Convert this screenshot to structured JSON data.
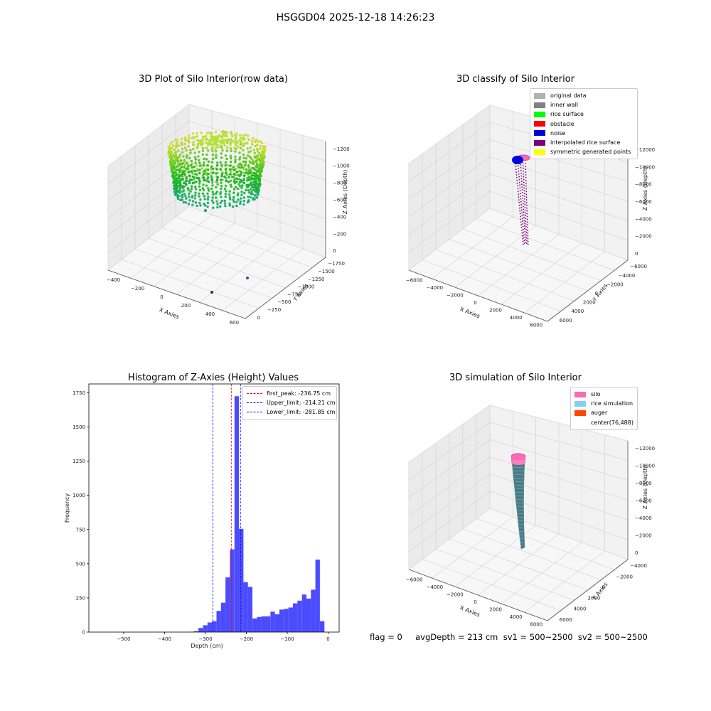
{
  "suptitle": "HSGGD04 2025-12-18 14:26:23",
  "panels": {
    "raw": {
      "title": "3D Plot of Silo Interior(row data)",
      "xlabel": "X Axies",
      "ylabel": "Y Axies",
      "zlabel": "Z Axies (Depth)",
      "xticks": [
        "−400",
        "−200",
        "0",
        "200",
        "400",
        "600"
      ],
      "yticks": [
        "0",
        "−250",
        "−500",
        "−750",
        "−1000",
        "−1250",
        "−1500",
        "−1750"
      ],
      "zticks": [
        "0",
        "−200",
        "−400",
        "−600",
        "−800",
        "−1000",
        "−1200"
      ]
    },
    "classify": {
      "title": "3D classify of Silo Interior",
      "xlabel": "X Axies",
      "ylabel": "Y Axies",
      "zlabel": "Z Axies (Depth)",
      "xticks": [
        "−6000",
        "−4000",
        "−2000",
        "0",
        "2000",
        "4000",
        "6000"
      ],
      "yticks": [
        "6000",
        "4000",
        "2000",
        "0",
        "−2000",
        "−4000",
        "−6000"
      ],
      "zticks": [
        "0",
        "−2000",
        "−4000",
        "−6000",
        "−8000",
        "−10000",
        "−12000"
      ],
      "legend": [
        {
          "label": "original data",
          "color": "#b0b0b0"
        },
        {
          "label": "inner wall",
          "color": "#808080"
        },
        {
          "label": "rice surface",
          "color": "#00ff00"
        },
        {
          "label": "obstacle",
          "color": "#ff0000"
        },
        {
          "label": "noise",
          "color": "#0000dd"
        },
        {
          "label": "interpolated rice surface",
          "color": "#800080"
        },
        {
          "label": "symmetric generated points",
          "color": "#ffff00"
        }
      ]
    },
    "simulation": {
      "title": "3D simulation of Silo Interior",
      "xlabel": "X Axies",
      "ylabel": "Y Axies",
      "zlabel": "Z Axies (Depth)",
      "xticks": [
        "−6000",
        "−4000",
        "−2000",
        "0",
        "2000",
        "4000",
        "6000"
      ],
      "yticks": [
        "6000",
        "4000",
        "2000",
        "0",
        "−2000",
        "−4000"
      ],
      "zticks": [
        "0",
        "−2000",
        "−4000",
        "−6000",
        "−8000",
        "−10000",
        "−12000"
      ],
      "legend": [
        {
          "label": "silo",
          "color": "#ff69b4"
        },
        {
          "label": "rice simulation",
          "color": "#87ceeb"
        },
        {
          "label": "auger",
          "color": "#ff4500"
        },
        {
          "label": "center(76,488)",
          "color": "#ffffff"
        }
      ]
    }
  },
  "chart_data": {
    "type": "bar",
    "title": "Histogram of Z-Axies (Height) Values",
    "xlabel": "Depth (cm)",
    "ylabel": "Frequency",
    "xlim": [
      -585,
      27
    ],
    "ylim": [
      0,
      1815
    ],
    "xticks": [
      -500,
      -400,
      -300,
      -200,
      -100,
      0
    ],
    "yticks": [
      0,
      250,
      500,
      750,
      1000,
      1250,
      1500,
      1750
    ],
    "bar_color": "#0000ff",
    "bin_width": 11,
    "bins": [
      {
        "x0": -339,
        "count": 2
      },
      {
        "x0": -328,
        "count": 6
      },
      {
        "x0": -317,
        "count": 30
      },
      {
        "x0": -306,
        "count": 50
      },
      {
        "x0": -295,
        "count": 70
      },
      {
        "x0": -284,
        "count": 80
      },
      {
        "x0": -273,
        "count": 155
      },
      {
        "x0": -262,
        "count": 215
      },
      {
        "x0": -251,
        "count": 400
      },
      {
        "x0": -240,
        "count": 605
      },
      {
        "x0": -229,
        "count": 1725
      },
      {
        "x0": -218,
        "count": 755
      },
      {
        "x0": -207,
        "count": 365
      },
      {
        "x0": -196,
        "count": 330
      },
      {
        "x0": -185,
        "count": 100
      },
      {
        "x0": -174,
        "count": 110
      },
      {
        "x0": -163,
        "count": 115
      },
      {
        "x0": -152,
        "count": 115
      },
      {
        "x0": -141,
        "count": 150
      },
      {
        "x0": -130,
        "count": 130
      },
      {
        "x0": -119,
        "count": 165
      },
      {
        "x0": -108,
        "count": 170
      },
      {
        "x0": -97,
        "count": 180
      },
      {
        "x0": -86,
        "count": 210
      },
      {
        "x0": -75,
        "count": 230
      },
      {
        "x0": -64,
        "count": 275
      },
      {
        "x0": -53,
        "count": 245
      },
      {
        "x0": -42,
        "count": 310
      },
      {
        "x0": -31,
        "count": 530
      },
      {
        "x0": -20,
        "count": 80
      }
    ],
    "vlines": [
      {
        "label": "first_peak: -236.75 cm",
        "x": -236.75,
        "color": "#ff0000"
      },
      {
        "label": "Upper_limit: -214.21 cm",
        "x": -214.21,
        "color": "#0000ff"
      },
      {
        "label": "Lower_limit: -281.85 cm",
        "x": -281.85,
        "color": "#0000ff"
      }
    ]
  },
  "footer": "flag = 0     avgDepth = 213 cm  sv1 = 500~2500  sv2 = 500~2500"
}
